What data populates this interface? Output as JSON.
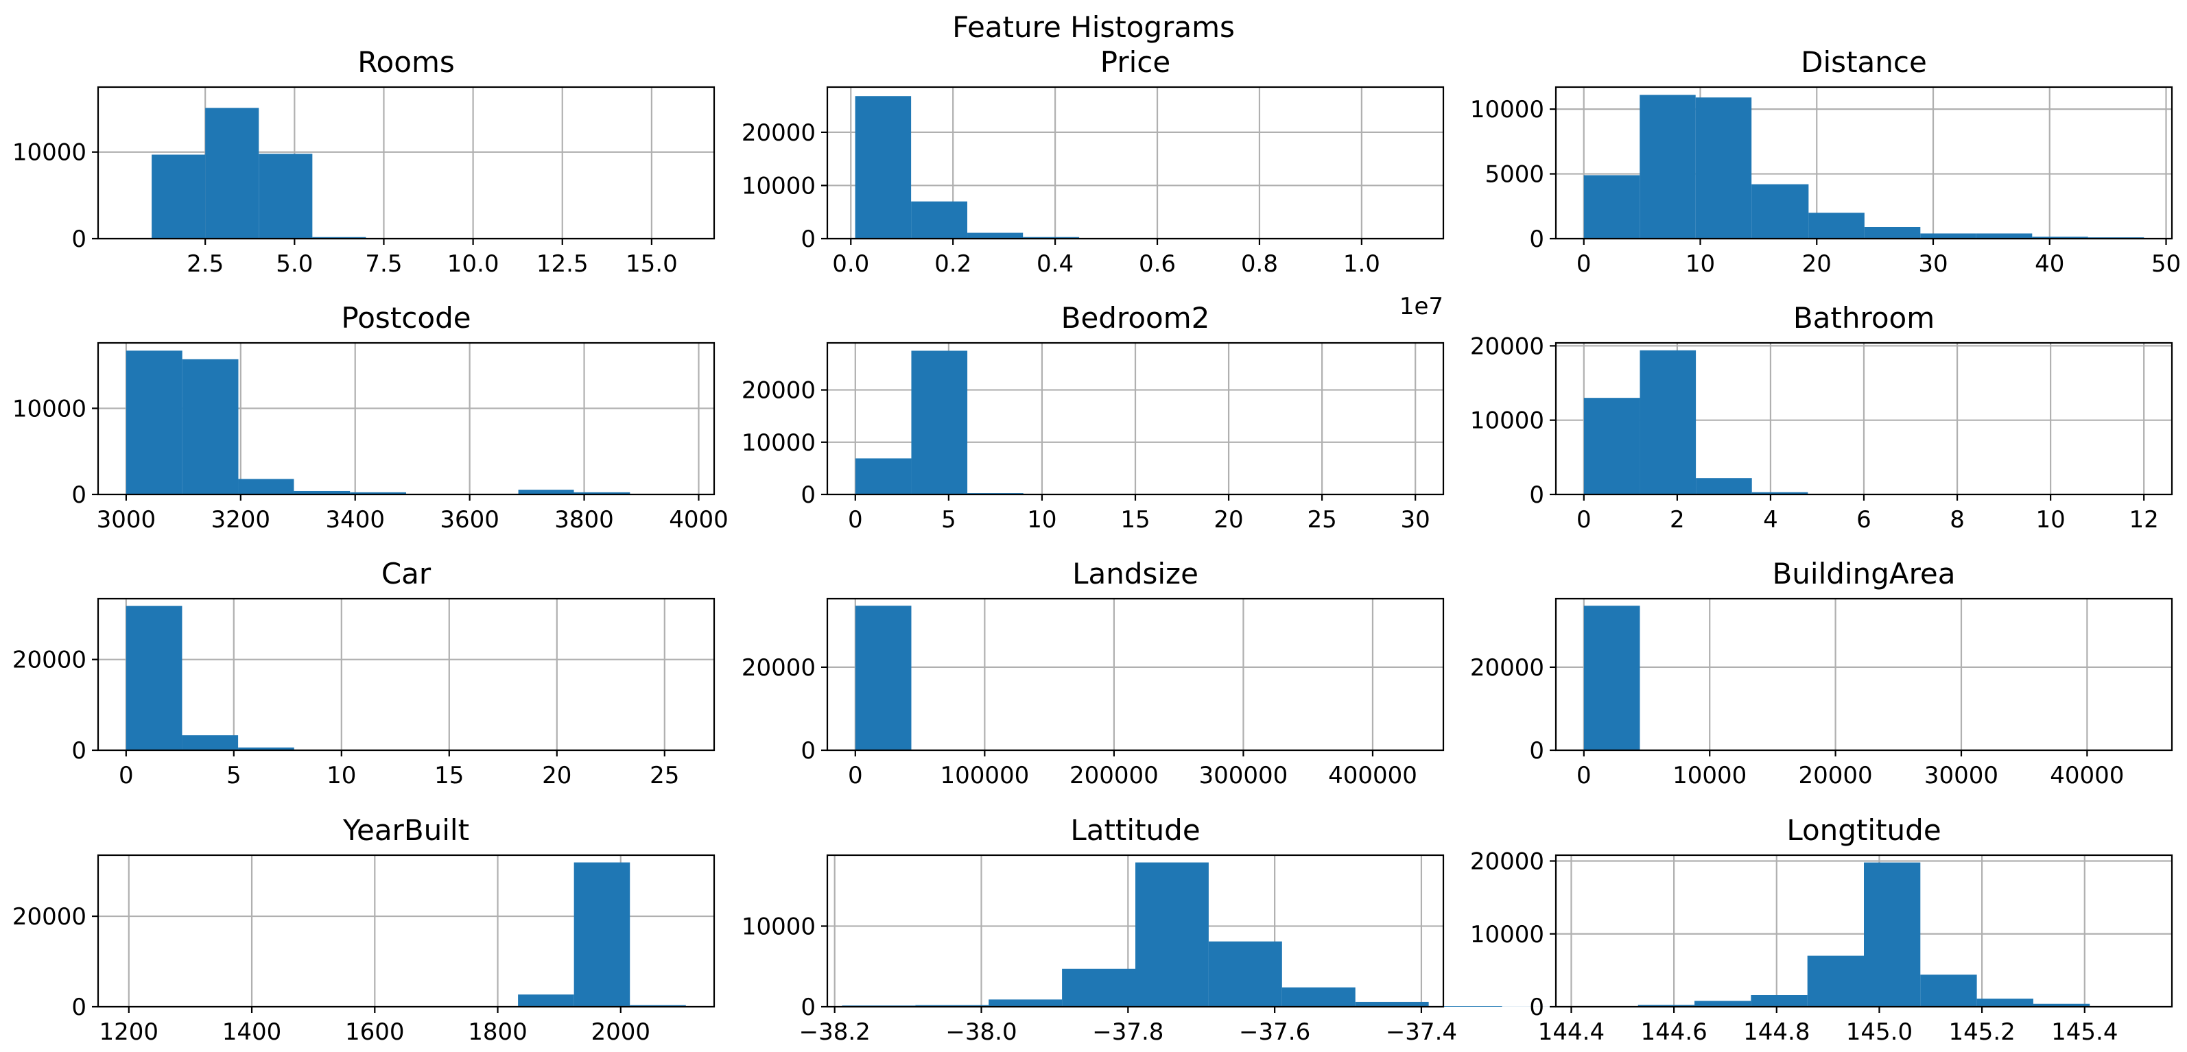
{
  "figure_title": "Feature Histograms",
  "colors": {
    "bar": "#1f77b4",
    "grid": "#b0b0b0"
  },
  "chart_data": [
    {
      "type": "bar",
      "title": "Rooms",
      "grid": true,
      "bins": [
        [
          1,
          2.5,
          9700
        ],
        [
          2.5,
          4,
          15100
        ],
        [
          4,
          5.5,
          9800
        ],
        [
          5.5,
          7,
          180
        ],
        [
          7,
          8.5,
          70
        ],
        [
          8.5,
          10,
          20
        ],
        [
          10,
          11.5,
          10
        ],
        [
          11.5,
          13,
          5
        ],
        [
          13,
          14.5,
          3
        ],
        [
          14.5,
          16,
          2
        ]
      ],
      "xlim": [
        -0.5,
        16.75
      ],
      "ylim": [
        0,
        17500
      ],
      "xticks": [
        2.5,
        5.0,
        7.5,
        10.0,
        12.5,
        15.0
      ],
      "xtick_labels": [
        "2.5",
        "5.0",
        "7.5",
        "10.0",
        "12.5",
        "15.0"
      ],
      "yticks": [
        0,
        10000
      ],
      "ytick_labels": [
        "0",
        "10000"
      ]
    },
    {
      "type": "bar",
      "title": "Price",
      "grid": true,
      "bins": [
        [
          85000,
          1180000,
          26800
        ],
        [
          1180000,
          2280000,
          7000
        ],
        [
          2280000,
          3370000,
          1100
        ],
        [
          3370000,
          4470000,
          300
        ],
        [
          4470000,
          5570000,
          90
        ],
        [
          5570000,
          6660000,
          40
        ],
        [
          6660000,
          7760000,
          15
        ],
        [
          7760000,
          8860000,
          8
        ],
        [
          8860000,
          9950000,
          4
        ],
        [
          9950000,
          11050000,
          2
        ]
      ],
      "xlim": [
        -460000,
        11600000
      ],
      "ylim": [
        0,
        28500
      ],
      "xticks": [
        0,
        2000000,
        4000000,
        6000000,
        8000000,
        10000000
      ],
      "xtick_labels": [
        "0.0",
        "0.2",
        "0.4",
        "0.6",
        "0.8",
        "1.0"
      ],
      "yticks": [
        0,
        10000,
        20000
      ],
      "ytick_labels": [
        "0",
        "10000",
        "20000"
      ],
      "offset_text": "1e7"
    },
    {
      "type": "bar",
      "title": "Distance",
      "grid": true,
      "bins": [
        [
          0,
          4.8,
          4900
        ],
        [
          4.8,
          9.6,
          11100
        ],
        [
          9.6,
          14.4,
          10900
        ],
        [
          14.4,
          19.3,
          4200
        ],
        [
          19.3,
          24.1,
          2000
        ],
        [
          24.1,
          28.9,
          900
        ],
        [
          28.9,
          33.7,
          400
        ],
        [
          33.7,
          38.5,
          400
        ],
        [
          38.5,
          43.3,
          150
        ],
        [
          43.3,
          48.1,
          100
        ]
      ],
      "xlim": [
        -2.4,
        50.5
      ],
      "ylim": [
        0,
        11700
      ],
      "xticks": [
        0,
        10,
        20,
        30,
        40,
        50
      ],
      "xtick_labels": [
        "0",
        "10",
        "20",
        "30",
        "40",
        "50"
      ],
      "yticks": [
        0,
        5000,
        10000
      ],
      "ytick_labels": [
        "0",
        "5000",
        "10000"
      ]
    },
    {
      "type": "bar",
      "title": "Postcode",
      "grid": true,
      "bins": [
        [
          3000,
          3098,
          16700
        ],
        [
          3098,
          3196,
          15700
        ],
        [
          3196,
          3293,
          1800
        ],
        [
          3293,
          3391,
          400
        ],
        [
          3391,
          3489,
          250
        ],
        [
          3489,
          3587,
          60
        ],
        [
          3587,
          3685,
          60
        ],
        [
          3685,
          3782,
          550
        ],
        [
          3782,
          3880,
          250
        ],
        [
          3880,
          3978,
          40
        ]
      ],
      "xlim": [
        2951,
        4027
      ],
      "ylim": [
        0,
        17600
      ],
      "xticks": [
        3000,
        3200,
        3400,
        3600,
        3800,
        4000
      ],
      "xtick_labels": [
        "3000",
        "3200",
        "3400",
        "3600",
        "3800",
        "4000"
      ],
      "yticks": [
        0,
        10000
      ],
      "ytick_labels": [
        "0",
        "10000"
      ]
    },
    {
      "type": "bar",
      "title": "Bedroom2",
      "grid": true,
      "bins": [
        [
          0,
          3,
          6900
        ],
        [
          3,
          6,
          27500
        ],
        [
          6,
          9,
          250
        ],
        [
          9,
          12,
          30
        ],
        [
          12,
          15,
          5
        ],
        [
          15,
          18,
          3
        ],
        [
          18,
          21,
          2
        ],
        [
          21,
          24,
          1
        ],
        [
          24,
          27,
          1
        ],
        [
          27,
          30,
          1
        ]
      ],
      "xlim": [
        -1.5,
        31.5
      ],
      "ylim": [
        0,
        29000
      ],
      "xticks": [
        0,
        5,
        10,
        15,
        20,
        25,
        30
      ],
      "xtick_labels": [
        "0",
        "5",
        "10",
        "15",
        "20",
        "25",
        "30"
      ],
      "yticks": [
        0,
        10000,
        20000
      ],
      "ytick_labels": [
        "0",
        "10000",
        "20000"
      ]
    },
    {
      "type": "bar",
      "title": "Bathroom",
      "grid": true,
      "bins": [
        [
          0,
          1.2,
          13000
        ],
        [
          1.2,
          2.4,
          19400
        ],
        [
          2.4,
          3.6,
          2200
        ],
        [
          3.6,
          4.8,
          300
        ],
        [
          4.8,
          6,
          50
        ],
        [
          6,
          7.2,
          20
        ],
        [
          7.2,
          8.4,
          10
        ],
        [
          8.4,
          9.6,
          5
        ],
        [
          9.6,
          10.8,
          3
        ],
        [
          10.8,
          12,
          2
        ]
      ],
      "xlim": [
        -0.6,
        12.6
      ],
      "ylim": [
        0,
        20400
      ],
      "xticks": [
        0,
        2,
        4,
        6,
        8,
        10,
        12
      ],
      "xtick_labels": [
        "0",
        "2",
        "4",
        "6",
        "8",
        "10",
        "12"
      ],
      "yticks": [
        0,
        10000,
        20000
      ],
      "ytick_labels": [
        "0",
        "10000",
        "20000"
      ]
    },
    {
      "type": "bar",
      "title": "Car",
      "grid": true,
      "bins": [
        [
          0,
          2.6,
          31800
        ],
        [
          2.6,
          5.2,
          3300
        ],
        [
          5.2,
          7.8,
          600
        ],
        [
          7.8,
          10.4,
          100
        ],
        [
          10.4,
          13,
          30
        ],
        [
          13,
          15.6,
          10
        ],
        [
          15.6,
          18.2,
          5
        ],
        [
          18.2,
          20.8,
          3
        ],
        [
          20.8,
          23.4,
          2
        ],
        [
          23.4,
          26,
          2
        ]
      ],
      "xlim": [
        -1.3,
        27.3
      ],
      "ylim": [
        0,
        33400
      ],
      "xticks": [
        0,
        5,
        10,
        15,
        20,
        25
      ],
      "xtick_labels": [
        "0",
        "5",
        "10",
        "15",
        "20",
        "25"
      ],
      "yticks": [
        0,
        20000
      ],
      "ytick_labels": [
        "0",
        "20000"
      ]
    },
    {
      "type": "bar",
      "title": "Landsize",
      "grid": true,
      "bins": [
        [
          0,
          43300,
          34800
        ],
        [
          43300,
          86700,
          40
        ],
        [
          86700,
          130000,
          10
        ],
        [
          130000,
          173300,
          5
        ],
        [
          173300,
          216700,
          3
        ],
        [
          216700,
          260000,
          2
        ],
        [
          260000,
          303300,
          1
        ],
        [
          303300,
          346700,
          1
        ],
        [
          346700,
          390000,
          1
        ],
        [
          390000,
          433000,
          1
        ]
      ],
      "xlim": [
        -21650,
        454650
      ],
      "ylim": [
        0,
        36500
      ],
      "xticks": [
        0,
        100000,
        200000,
        300000,
        400000
      ],
      "xtick_labels": [
        "0",
        "100000",
        "200000",
        "300000",
        "400000"
      ],
      "yticks": [
        0,
        20000
      ],
      "ytick_labels": [
        "0",
        "20000"
      ]
    },
    {
      "type": "bar",
      "title": "BuildingArea",
      "grid": true,
      "bins": [
        [
          0,
          4452,
          34800
        ],
        [
          4452,
          8903,
          5
        ],
        [
          8903,
          13355,
          2
        ],
        [
          13355,
          17806,
          1
        ],
        [
          17806,
          22258,
          1
        ],
        [
          22258,
          26709,
          1
        ],
        [
          26709,
          31161,
          1
        ],
        [
          31161,
          35612,
          1
        ],
        [
          35612,
          40064,
          1
        ],
        [
          40064,
          44515,
          1
        ]
      ],
      "xlim": [
        -2226,
        46741
      ],
      "ylim": [
        0,
        36500
      ],
      "xticks": [
        0,
        10000,
        20000,
        30000,
        40000
      ],
      "xtick_labels": [
        "0",
        "10000",
        "20000",
        "30000",
        "40000"
      ],
      "yticks": [
        0,
        20000
      ],
      "ytick_labels": [
        "0",
        "20000"
      ]
    },
    {
      "type": "bar",
      "title": "YearBuilt",
      "grid": true,
      "bins": [
        [
          1196,
          1287,
          2
        ],
        [
          1287,
          1378,
          1
        ],
        [
          1378,
          1469,
          1
        ],
        [
          1469,
          1560,
          1
        ],
        [
          1560,
          1651,
          1
        ],
        [
          1651,
          1742,
          1
        ],
        [
          1742,
          1833,
          30
        ],
        [
          1833,
          1924,
          2700
        ],
        [
          1924,
          2015,
          31900
        ],
        [
          2015,
          2106,
          350
        ]
      ],
      "xlim": [
        1150,
        2152
      ],
      "ylim": [
        0,
        33500
      ],
      "xticks": [
        1200,
        1400,
        1600,
        1800,
        2000
      ],
      "xtick_labels": [
        "1200",
        "1400",
        "1600",
        "1800",
        "2000"
      ],
      "yticks": [
        0,
        20000
      ],
      "ytick_labels": [
        "0",
        "20000"
      ]
    },
    {
      "type": "bar",
      "title": "Lattitude",
      "grid": true,
      "bins": [
        [
          -38.19,
          -38.09,
          150
        ],
        [
          -38.09,
          -37.99,
          200
        ],
        [
          -37.99,
          -37.89,
          900
        ],
        [
          -37.89,
          -37.79,
          4700
        ],
        [
          -37.79,
          -37.69,
          17900
        ],
        [
          -37.69,
          -37.59,
          8100
        ],
        [
          -37.59,
          -37.49,
          2400
        ],
        [
          -37.49,
          -37.39,
          600
        ],
        [
          -37.39,
          -37.29,
          80
        ],
        [
          -37.29,
          -37.19,
          10
        ]
      ],
      "xlim": [
        -38.21,
        -37.37
      ],
      "ylim": [
        0,
        18800
      ],
      "xticks": [
        -38.2,
        -38.0,
        -37.8,
        -37.6,
        -37.4
      ],
      "xtick_labels": [
        "−38.2",
        "−38.0",
        "−37.8",
        "−37.6",
        "−37.4"
      ],
      "yticks": [
        0,
        10000
      ],
      "ytick_labels": [
        "0",
        "10000"
      ]
    },
    {
      "type": "bar",
      "title": "Longtitude",
      "grid": true,
      "bins": [
        [
          144.42,
          144.53,
          20
        ],
        [
          144.53,
          144.64,
          250
        ],
        [
          144.64,
          144.75,
          800
        ],
        [
          144.75,
          144.86,
          1600
        ],
        [
          144.86,
          144.97,
          7000
        ],
        [
          144.97,
          145.08,
          19800
        ],
        [
          145.08,
          145.19,
          4400
        ],
        [
          145.19,
          145.3,
          1100
        ],
        [
          145.3,
          145.41,
          400
        ],
        [
          145.41,
          145.52,
          80
        ]
      ],
      "xlim": [
        144.37,
        145.57
      ],
      "ylim": [
        0,
        20800
      ],
      "xticks": [
        144.4,
        144.6,
        144.8,
        145.0,
        145.2,
        145.4
      ],
      "xtick_labels": [
        "144.4",
        "144.6",
        "144.8",
        "145.0",
        "145.2",
        "145.4"
      ],
      "yticks": [
        0,
        10000,
        20000
      ],
      "ytick_labels": [
        "0",
        "10000",
        "20000"
      ]
    }
  ]
}
